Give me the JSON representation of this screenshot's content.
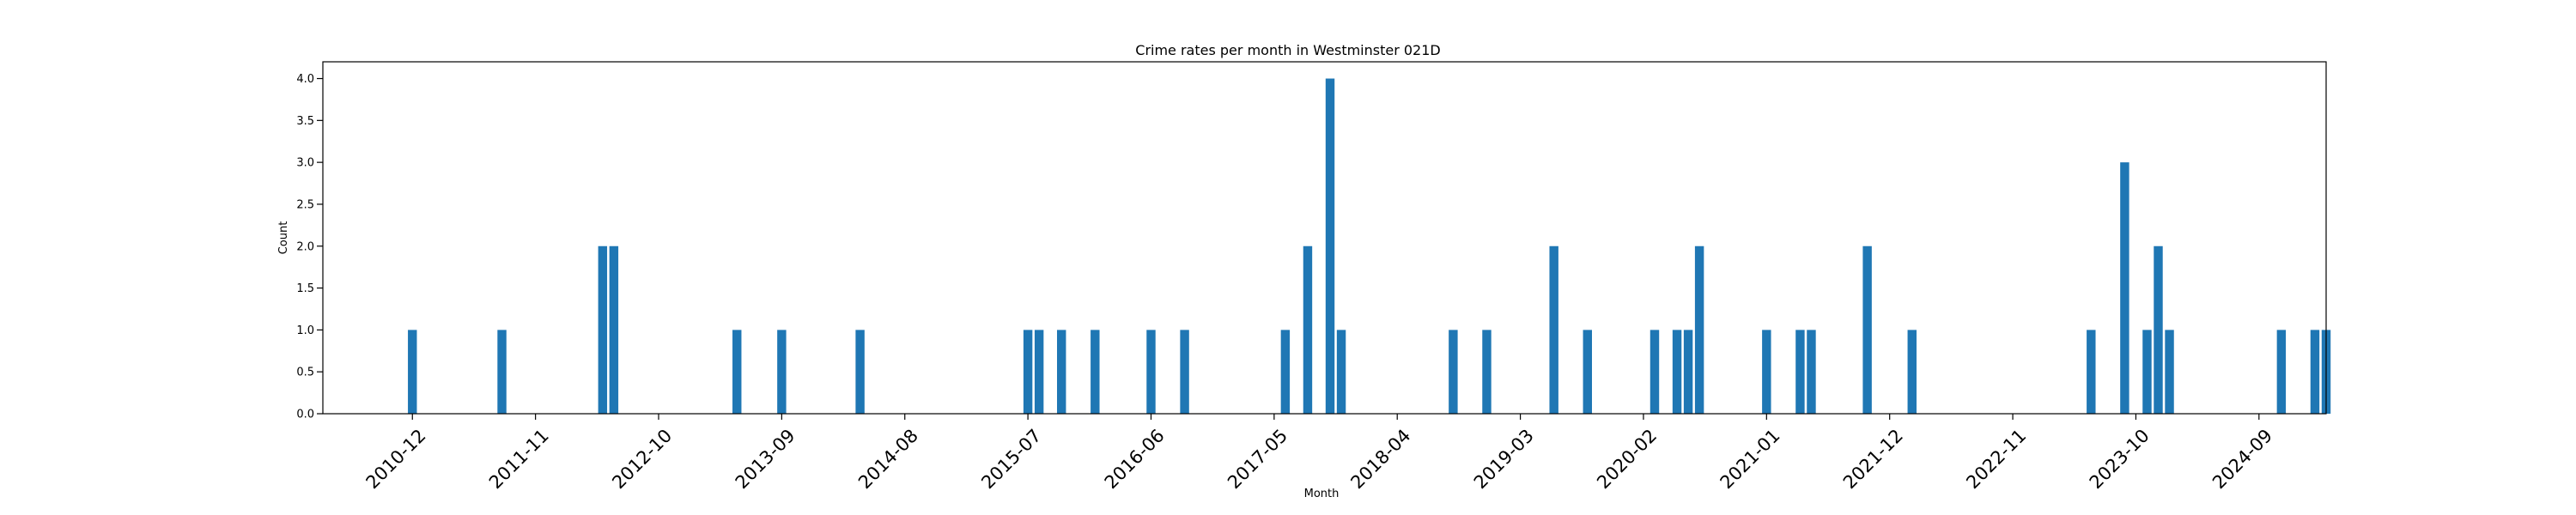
{
  "chart_data": {
    "type": "bar",
    "title": "Crime rates per month in Westminster 021D",
    "xlabel": "Month",
    "ylabel": "Count",
    "ylim": [
      0,
      4.2
    ],
    "yticks": [
      "0.0",
      "0.5",
      "1.0",
      "1.5",
      "2.0",
      "2.5",
      "3.0",
      "3.5",
      "4.0"
    ],
    "xticks": [
      "2010-12",
      "2011-11",
      "2012-10",
      "2013-09",
      "2014-08",
      "2015-07",
      "2016-06",
      "2017-05",
      "2018-04",
      "2019-03",
      "2020-02",
      "2021-01",
      "2021-12",
      "2022-11",
      "2023-10",
      "2024-09"
    ],
    "xlim": [
      "2010-04",
      "2025-03"
    ],
    "grid": false,
    "legend": false,
    "color": "#1f77b4",
    "x": [
      "2010-12",
      "2011-08",
      "2012-05",
      "2012-06",
      "2013-05",
      "2013-09",
      "2014-04",
      "2015-07",
      "2015-08",
      "2015-10",
      "2016-01",
      "2016-06",
      "2016-09",
      "2017-06",
      "2017-08",
      "2017-10",
      "2017-11",
      "2018-09",
      "2018-12",
      "2019-06",
      "2019-09",
      "2020-03",
      "2020-05",
      "2020-06",
      "2020-07",
      "2021-01",
      "2021-04",
      "2021-05",
      "2021-10",
      "2022-02",
      "2023-06",
      "2023-09",
      "2023-11",
      "2023-12",
      "2024-01",
      "2024-11",
      "2025-02",
      "2025-03"
    ],
    "values": [
      1,
      1,
      2,
      2,
      1,
      1,
      1,
      1,
      1,
      1,
      1,
      1,
      1,
      1,
      2,
      4,
      1,
      1,
      1,
      2,
      1,
      1,
      1,
      1,
      2,
      1,
      1,
      1,
      2,
      1,
      1,
      3,
      1,
      2,
      1,
      1,
      1,
      1
    ]
  }
}
